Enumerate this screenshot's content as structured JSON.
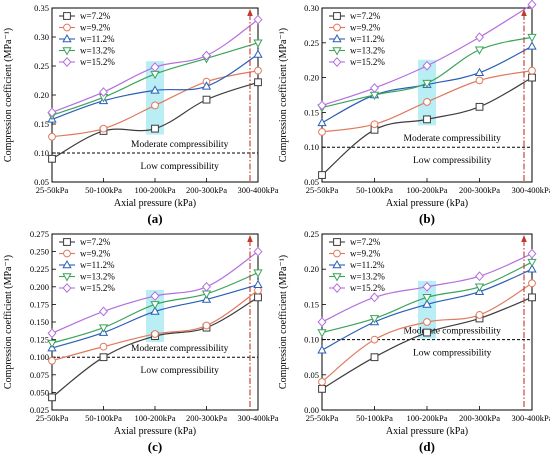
{
  "colors": {
    "series": [
      "#3d3d3d",
      "#e07a5f",
      "#2a5fb8",
      "#3aa45a",
      "#b46fe0"
    ],
    "threshold": "#000000",
    "marker_line": "#c0392b",
    "highlight": "#66d9e8"
  },
  "chart_data": [
    {
      "type": "line",
      "panel": "(a)",
      "title": "",
      "xlabel": "Axial pressure (kPa)",
      "ylabel": "Compression coefficient (MPa⁻¹)",
      "categories": [
        "25-50kPa",
        "50-100kPa",
        "100-200kPa",
        "200-300kPa",
        "300-400kPa"
      ],
      "ylim": [
        0.05,
        0.35
      ],
      "yticks": [
        "0.05",
        "0.10",
        "0.15",
        "0.20",
        "0.25",
        "0.30",
        "0.35"
      ],
      "threshold": 0.1,
      "threshold_labels": [
        "Moderate compressibility",
        "Low compressibility"
      ],
      "legend_position": "top-left",
      "series": [
        {
          "name": "w=7.2%",
          "values": [
            0.09,
            0.138,
            0.142,
            0.192,
            0.222
          ]
        },
        {
          "name": "w=9.2%",
          "values": [
            0.128,
            0.142,
            0.182,
            0.223,
            0.242
          ]
        },
        {
          "name": "w=11.2%",
          "values": [
            0.158,
            0.19,
            0.208,
            0.215,
            0.27
          ]
        },
        {
          "name": "w=13.2%",
          "values": [
            0.165,
            0.196,
            0.236,
            0.263,
            0.29
          ]
        },
        {
          "name": "w=15.2%",
          "values": [
            0.17,
            0.205,
            0.248,
            0.268,
            0.33
          ]
        }
      ]
    },
    {
      "type": "line",
      "panel": "(b)",
      "title": "",
      "xlabel": "Axial pressure (kPa)",
      "ylabel": "Compression coefficient (MPa⁻¹)",
      "categories": [
        "25-50kPa",
        "50-100kPa",
        "100-200kPa",
        "200-300kPa",
        "300-400kPa"
      ],
      "ylim": [
        0.05,
        0.3
      ],
      "yticks": [
        "0.05",
        "0.10",
        "0.15",
        "0.20",
        "0.25",
        "0.30"
      ],
      "threshold": 0.1,
      "threshold_labels": [
        "Moderate compressibility",
        "Low compressibility"
      ],
      "legend_position": "top-left",
      "series": [
        {
          "name": "w=7.2%",
          "values": [
            0.06,
            0.125,
            0.14,
            0.158,
            0.2
          ]
        },
        {
          "name": "w=9.2%",
          "values": [
            0.122,
            0.133,
            0.165,
            0.196,
            0.21
          ]
        },
        {
          "name": "w=11.2%",
          "values": [
            0.135,
            0.175,
            0.19,
            0.207,
            0.245
          ]
        },
        {
          "name": "w=13.2%",
          "values": [
            0.157,
            0.175,
            0.192,
            0.24,
            0.258
          ]
        },
        {
          "name": "w=15.2%",
          "values": [
            0.16,
            0.185,
            0.217,
            0.258,
            0.305
          ]
        }
      ]
    },
    {
      "type": "line",
      "panel": "(c)",
      "title": "",
      "xlabel": "Axial pressure (kPa)",
      "ylabel": "Compression coefficient (MPa⁻¹)",
      "categories": [
        "25-50kPa",
        "50-100kPa",
        "100-200kPa",
        "200-300kPa",
        "300-400kPa"
      ],
      "ylim": [
        0.025,
        0.275
      ],
      "yticks": [
        "0.025",
        "0.050",
        "0.075",
        "0.100",
        "0.125",
        "0.150",
        "0.175",
        "0.200",
        "0.225",
        "0.250",
        "0.275"
      ],
      "threshold": 0.1,
      "threshold_labels": [
        "Moderate compressibility",
        "Low compressibility"
      ],
      "legend_position": "top-left",
      "series": [
        {
          "name": "w=7.2%",
          "values": [
            0.043,
            0.1,
            0.13,
            0.142,
            0.185
          ]
        },
        {
          "name": "w=9.2%",
          "values": [
            0.095,
            0.115,
            0.133,
            0.145,
            0.195
          ]
        },
        {
          "name": "w=11.2%",
          "values": [
            0.113,
            0.135,
            0.165,
            0.182,
            0.203
          ]
        },
        {
          "name": "w=13.2%",
          "values": [
            0.12,
            0.142,
            0.175,
            0.19,
            0.22
          ]
        },
        {
          "name": "w=15.2%",
          "values": [
            0.134,
            0.165,
            0.187,
            0.2,
            0.25
          ]
        }
      ]
    },
    {
      "type": "line",
      "panel": "(d)",
      "title": "",
      "xlabel": "Axial pressure (kPa)",
      "ylabel": "Compression coefficient (MPa⁻¹)",
      "categories": [
        "25-50kPa",
        "50-100kPa",
        "100-200kPa",
        "200-300kPa",
        "300-400kPa"
      ],
      "ylim": [
        0.0,
        0.25
      ],
      "yticks": [
        "0.00",
        "0.05",
        "0.10",
        "0.15",
        "0.20",
        "0.25"
      ],
      "threshold": 0.1,
      "threshold_labels": [
        "Moderate compressibility",
        "Low compressibility"
      ],
      "legend_position": "top-left",
      "series": [
        {
          "name": "w=7.2%",
          "values": [
            0.03,
            0.075,
            0.11,
            0.13,
            0.16
          ]
        },
        {
          "name": "w=9.2%",
          "values": [
            0.04,
            0.1,
            0.125,
            0.135,
            0.18
          ]
        },
        {
          "name": "w=11.2%",
          "values": [
            0.085,
            0.125,
            0.15,
            0.168,
            0.2
          ]
        },
        {
          "name": "w=13.2%",
          "values": [
            0.11,
            0.13,
            0.16,
            0.175,
            0.21
          ]
        },
        {
          "name": "w=15.2%",
          "values": [
            0.125,
            0.16,
            0.175,
            0.19,
            0.222
          ]
        }
      ]
    }
  ]
}
